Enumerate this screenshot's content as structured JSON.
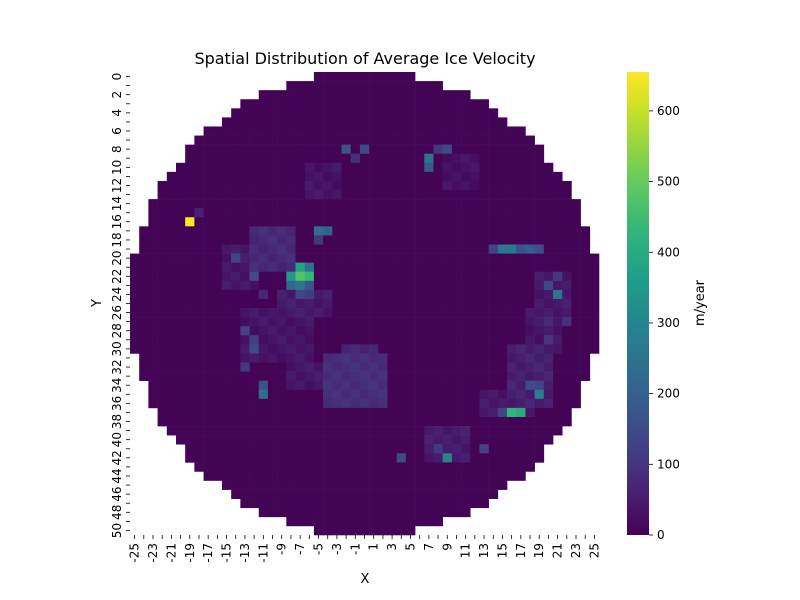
{
  "chart_data": {
    "type": "heatmap",
    "title": "Spatial Distribution of Average Ice Velocity",
    "xlabel": "X",
    "ylabel": "Y",
    "colorbar_label": "m/year",
    "colormap": "viridis",
    "value_range": [
      0,
      655
    ],
    "colorbar_ticks": [
      "0",
      "100",
      "200",
      "300",
      "400",
      "500",
      "600"
    ],
    "x_range": [
      -25,
      25
    ],
    "y_range": [
      0,
      50
    ],
    "x_tick_labels": [
      "-25",
      "-23",
      "-21",
      "-19",
      "-17",
      "-15",
      "-13",
      "-11",
      "-9",
      "-7",
      "-5",
      "-3",
      "-1",
      "1",
      "3",
      "5",
      "7",
      "9",
      "11",
      "13",
      "15",
      "17",
      "19",
      "21",
      "23",
      "25"
    ],
    "y_tick_labels": [
      "0",
      "2",
      "4",
      "6",
      "8",
      "10",
      "12",
      "14",
      "16",
      "18",
      "20",
      "22",
      "24",
      "26",
      "28",
      "30",
      "32",
      "34",
      "36",
      "38",
      "40",
      "42",
      "44",
      "46",
      "48",
      "50"
    ],
    "mask": "circular region of radius 25 centered at x=0, y=25; cells outside are blank",
    "background_value": 5,
    "hotspots": [
      {
        "x": -19,
        "y": 16,
        "value": 655
      },
      {
        "x": -18,
        "y": 15,
        "value": 60
      },
      {
        "x": -7,
        "y": 22,
        "value": 480
      },
      {
        "x": -6,
        "y": 22,
        "value": 440
      },
      {
        "x": -7,
        "y": 21,
        "value": 380
      },
      {
        "x": -8,
        "y": 22,
        "value": 350
      },
      {
        "x": -8,
        "y": 23,
        "value": 220
      },
      {
        "x": -7,
        "y": 23,
        "value": 260
      },
      {
        "x": -6,
        "y": 23,
        "value": 180
      },
      {
        "x": -6,
        "y": 21,
        "value": 250
      },
      {
        "x": -6,
        "y": 24,
        "value": 120
      },
      {
        "x": -7,
        "y": 24,
        "value": 140
      },
      {
        "x": -4,
        "y": 17,
        "value": 200
      },
      {
        "x": -5,
        "y": 17,
        "value": 230
      },
      {
        "x": -5,
        "y": 18,
        "value": 110
      },
      {
        "x": -12,
        "y": 22,
        "value": 150
      },
      {
        "x": -14,
        "y": 20,
        "value": 140
      },
      {
        "x": -11,
        "y": 24,
        "value": 70
      },
      {
        "x": -13,
        "y": 28,
        "value": 130
      },
      {
        "x": -12,
        "y": 29,
        "value": 120
      },
      {
        "x": -12,
        "y": 30,
        "value": 150
      },
      {
        "x": -11,
        "y": 35,
        "value": 230
      },
      {
        "x": -11,
        "y": 34,
        "value": 170
      },
      {
        "x": -13,
        "y": 32,
        "value": 110
      },
      {
        "x": 7,
        "y": 9,
        "value": 250
      },
      {
        "x": 7,
        "y": 10,
        "value": 190
      },
      {
        "x": 8,
        "y": 8,
        "value": 110
      },
      {
        "x": 9,
        "y": 8,
        "value": 150
      },
      {
        "x": 15,
        "y": 19,
        "value": 260
      },
      {
        "x": 16,
        "y": 19,
        "value": 260
      },
      {
        "x": 17,
        "y": 19,
        "value": 170
      },
      {
        "x": 18,
        "y": 19,
        "value": 190
      },
      {
        "x": 19,
        "y": 19,
        "value": 160
      },
      {
        "x": 14,
        "y": 19,
        "value": 130
      },
      {
        "x": 16,
        "y": 37,
        "value": 430
      },
      {
        "x": 17,
        "y": 37,
        "value": 400
      },
      {
        "x": 15,
        "y": 37,
        "value": 140
      },
      {
        "x": 19,
        "y": 35,
        "value": 280
      },
      {
        "x": 19,
        "y": 34,
        "value": 130
      },
      {
        "x": 18,
        "y": 34,
        "value": 150
      },
      {
        "x": 21,
        "y": 24,
        "value": 250
      },
      {
        "x": 20,
        "y": 23,
        "value": 140
      },
      {
        "x": 21,
        "y": 22,
        "value": 110
      },
      {
        "x": 9,
        "y": 42,
        "value": 300
      },
      {
        "x": 4,
        "y": 42,
        "value": 150
      },
      {
        "x": 13,
        "y": 41,
        "value": 130
      },
      {
        "x": 8,
        "y": 41,
        "value": 110
      },
      {
        "x": -2,
        "y": 8,
        "value": 170
      },
      {
        "x": 0,
        "y": 8,
        "value": 150
      },
      {
        "x": -1,
        "y": 9,
        "value": 90
      },
      {
        "x": 20,
        "y": 29,
        "value": 100
      },
      {
        "x": 22,
        "y": 27,
        "value": 90
      },
      {
        "x": 20,
        "y": 27,
        "value": 80
      }
    ],
    "moderate_regions": [
      {
        "x": [
          -12,
          -8
        ],
        "y": [
          17,
          21
        ],
        "value": 75
      },
      {
        "x": [
          -9,
          -4
        ],
        "y": [
          24,
          26
        ],
        "value": 45
      },
      {
        "x": [
          -13,
          -6
        ],
        "y": [
          26,
          31
        ],
        "value": 35
      },
      {
        "x": [
          -4,
          2
        ],
        "y": [
          31,
          36
        ],
        "value": 85
      },
      {
        "x": [
          -2,
          1
        ],
        "y": [
          30,
          31
        ],
        "value": 70
      },
      {
        "x": [
          -8,
          -3
        ],
        "y": [
          32,
          34
        ],
        "value": 40
      },
      {
        "x": [
          16,
          20
        ],
        "y": [
          30,
          36
        ],
        "value": 55
      },
      {
        "x": [
          13,
          18
        ],
        "y": [
          35,
          37
        ],
        "value": 40
      },
      {
        "x": [
          -6,
          -3
        ],
        "y": [
          10,
          13
        ],
        "value": 35
      },
      {
        "x": [
          9,
          12
        ],
        "y": [
          9,
          12
        ],
        "value": 30
      },
      {
        "x": [
          19,
          22
        ],
        "y": [
          22,
          26
        ],
        "value": 45
      },
      {
        "x": [
          7,
          11
        ],
        "y": [
          39,
          42
        ],
        "value": 50
      },
      {
        "x": [
          18,
          21
        ],
        "y": [
          26,
          30
        ],
        "value": 35
      },
      {
        "x": [
          -15,
          -12
        ],
        "y": [
          19,
          23
        ],
        "value": 40
      }
    ]
  }
}
